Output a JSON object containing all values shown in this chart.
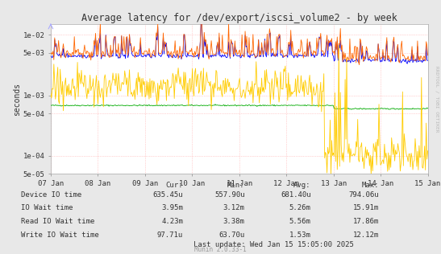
{
  "title": "Average latency for /dev/export/iscsi_volume2 - by week",
  "ylabel": "seconds",
  "xlabel_ticks": [
    "07 Jan",
    "08 Jan",
    "09 Jan",
    "10 Jan",
    "11 Jan",
    "12 Jan",
    "13 Jan",
    "14 Jan",
    "15 Jan"
  ],
  "bg_color": "#e8e8e8",
  "plot_bg_color": "#ffffff",
  "grid_color": "#ffaaaa",
  "line_colors": {
    "device_io": "#00aa00",
    "io_wait": "#0000ff",
    "read_io_wait": "#ff6600",
    "write_io_wait": "#ffcc00"
  },
  "legend": [
    {
      "label": "Device IO time",
      "color": "#00aa00"
    },
    {
      "label": "IO Wait time",
      "color": "#0000ff"
    },
    {
      "label": "Read IO Wait time",
      "color": "#ff6600"
    },
    {
      "label": "Write IO Wait time",
      "color": "#ffcc00"
    }
  ],
  "stats_header": [
    "Cur:",
    "Min:",
    "Avg:",
    "Max:"
  ],
  "stats": [
    [
      "635.45u",
      "557.90u",
      "681.40u",
      "794.06u"
    ],
    [
      "3.95m",
      "3.12m",
      "5.26m",
      "15.91m"
    ],
    [
      "4.23m",
      "3.38m",
      "5.56m",
      "17.86m"
    ],
    [
      "97.71u",
      "63.70u",
      "1.53m",
      "12.12m"
    ]
  ],
  "last_update": "Last update: Wed Jan 15 15:05:00 2025",
  "munin_version": "Munin 2.0.33-1",
  "right_label": "RRDTOOL / TOBI OETIKER",
  "seed": 42
}
